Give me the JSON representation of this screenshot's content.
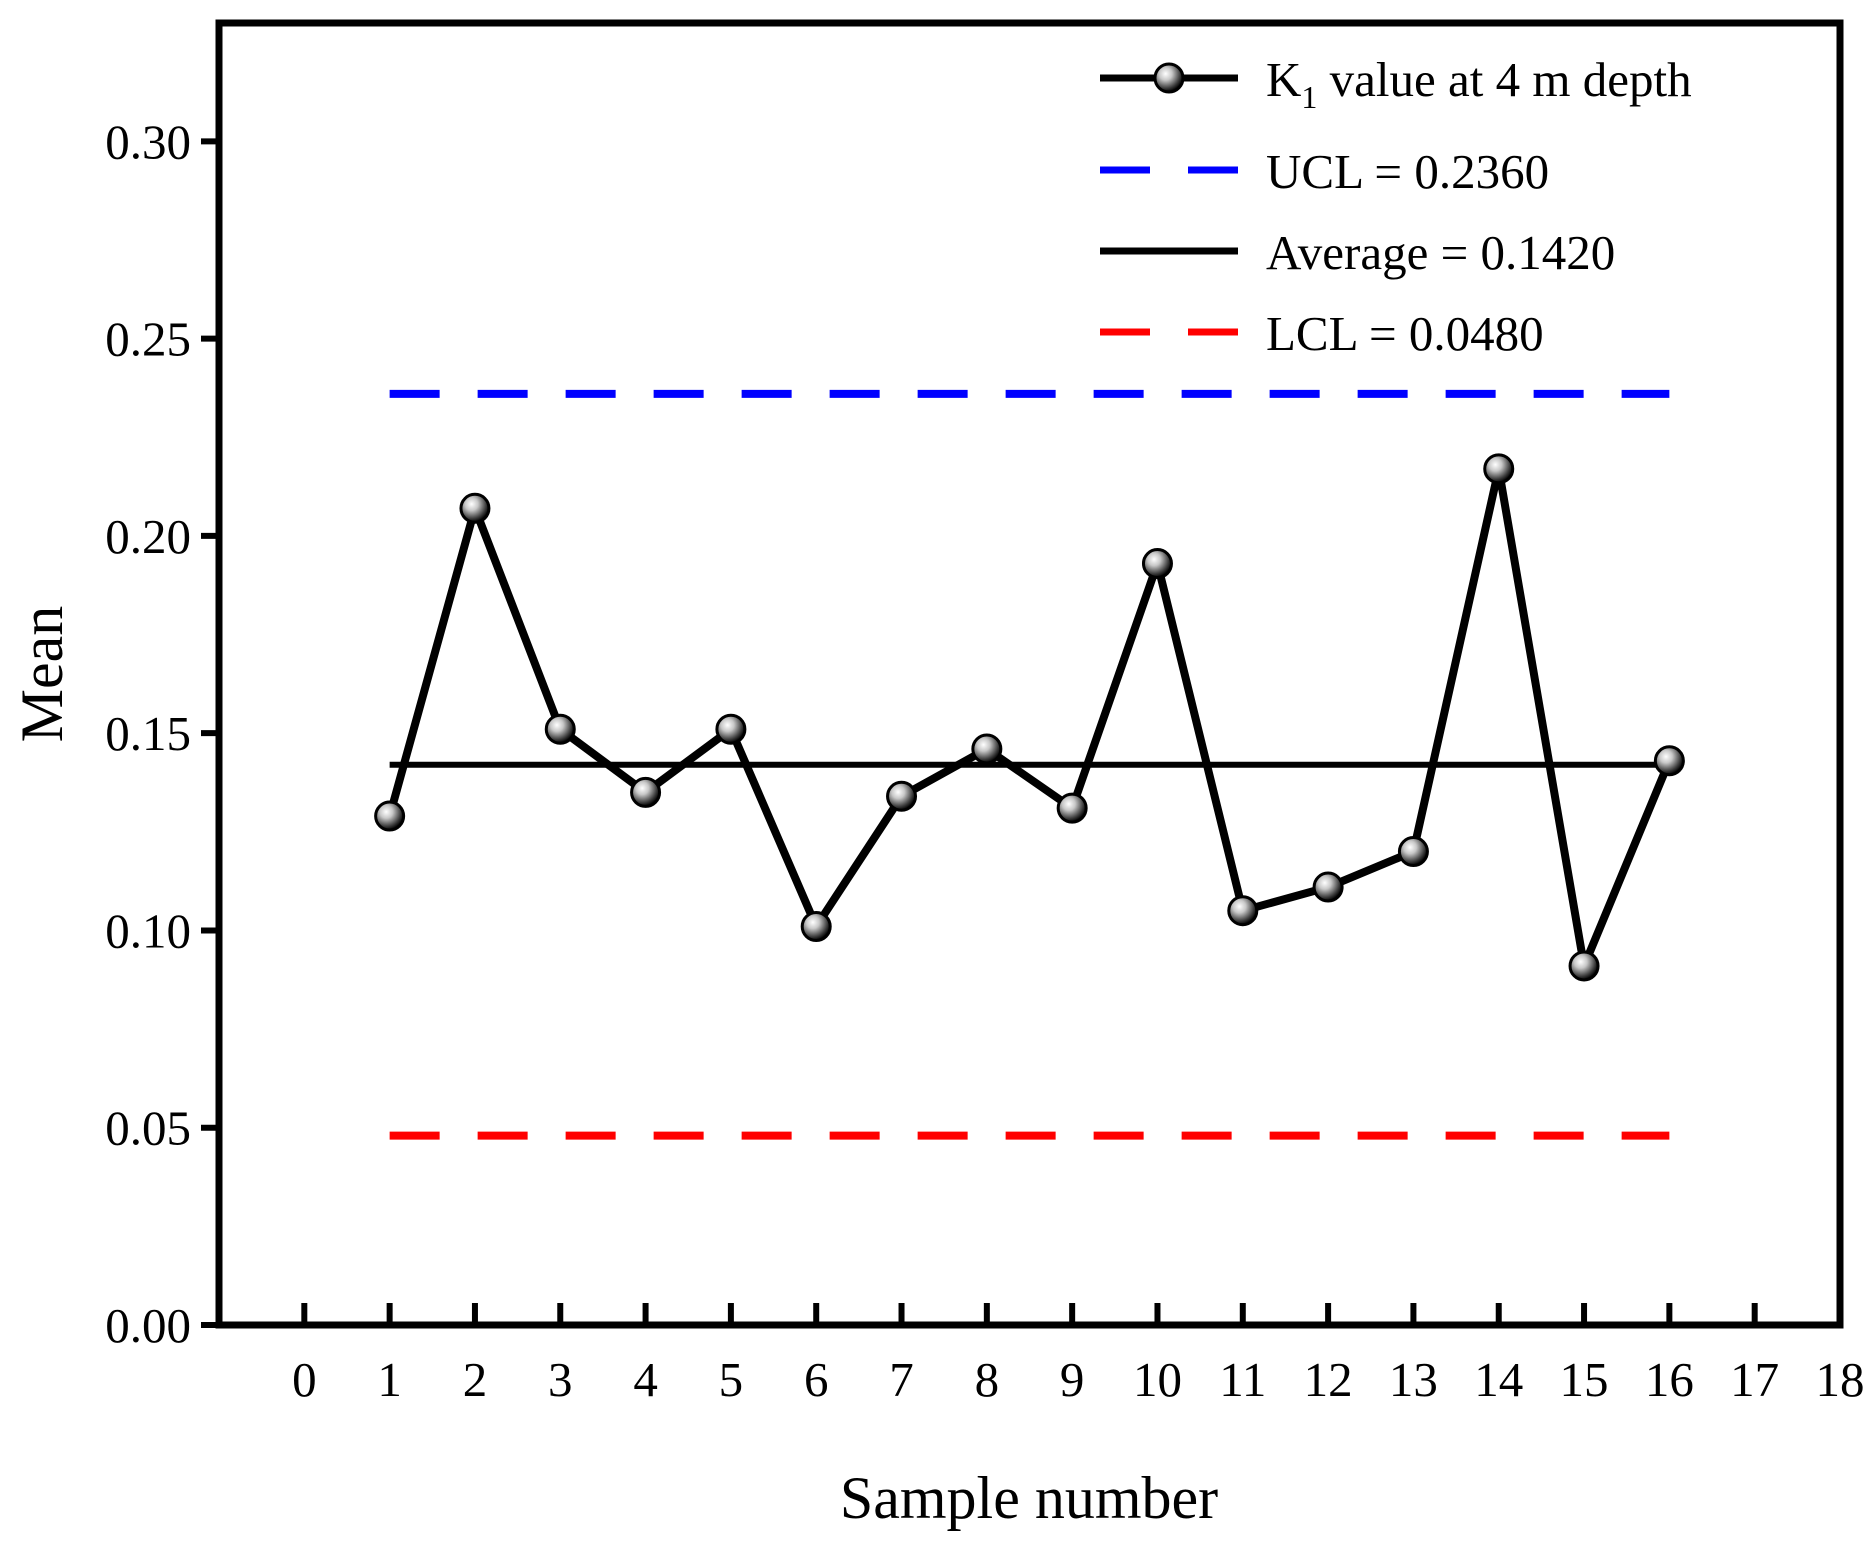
{
  "chart_data": {
    "type": "line",
    "xlabel": "Sample number",
    "ylabel": "Mean",
    "xlim": [
      -1,
      18
    ],
    "ylim": [
      0.0,
      0.33
    ],
    "xticks": [
      "0",
      "1",
      "2",
      "3",
      "4",
      "5",
      "6",
      "7",
      "8",
      "9",
      "10",
      "11",
      "12",
      "13",
      "14",
      "15",
      "16",
      "17",
      "18"
    ],
    "yticks": [
      "0.00",
      "0.05",
      "0.10",
      "0.15",
      "0.20",
      "0.25",
      "0.30"
    ],
    "series": [
      {
        "name": "K1 value at 4 m depth",
        "legend_main": "K",
        "legend_sub": "1",
        "legend_rest": " value at 4 m depth",
        "color": "#000000",
        "x": [
          1,
          2,
          3,
          4,
          5,
          6,
          7,
          8,
          9,
          10,
          11,
          12,
          13,
          14,
          15,
          16
        ],
        "values": [
          0.129,
          0.207,
          0.151,
          0.135,
          0.151,
          0.101,
          0.134,
          0.146,
          0.131,
          0.193,
          0.105,
          0.111,
          0.12,
          0.217,
          0.091,
          0.143
        ]
      }
    ],
    "control_lines": [
      {
        "name": "UCL = 0.2360",
        "value": 0.236,
        "style": "dashed",
        "color": "#0000ff"
      },
      {
        "name": "Average = 0.1420",
        "value": 0.142,
        "style": "solid",
        "color": "#000000"
      },
      {
        "name": "LCL = 0.0480",
        "value": 0.048,
        "style": "dashed",
        "color": "#ff0000"
      }
    ],
    "control_x_range": [
      1,
      16
    ],
    "legend_position": "top-right"
  }
}
